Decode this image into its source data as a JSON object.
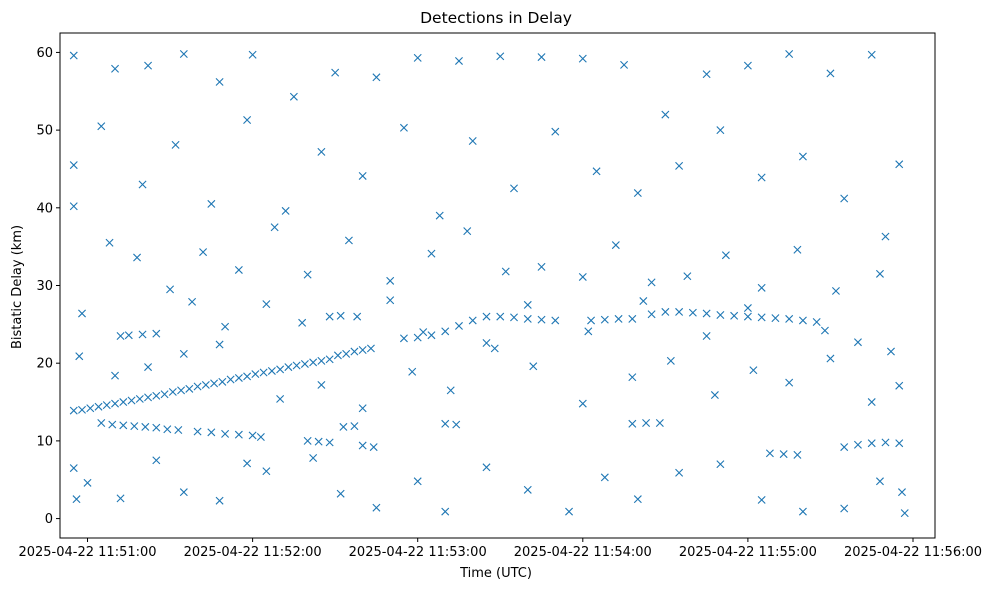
{
  "chart_data": {
    "type": "scatter",
    "title": "Detections in Delay",
    "xlabel": "Time (UTC)",
    "ylabel": "Bistatic Delay (km)",
    "xlim": [
      "2025-04-22 11:50:50",
      "2025-04-22 11:56:08"
    ],
    "ylim": [
      -2.5,
      62.5
    ],
    "xticks": [
      "2025-04-22 11:51:00",
      "2025-04-22 11:52:00",
      "2025-04-22 11:53:00",
      "2025-04-22 11:54:00",
      "2025-04-22 11:55:00",
      "2025-04-22 11:56:00"
    ],
    "yticks": [
      0,
      10,
      20,
      30,
      40,
      50,
      60
    ],
    "marker": "x",
    "color": "#1f77b4",
    "grid": false,
    "legend": "none",
    "series": [
      {
        "points": [
          [
            "2025-04-22 11:50:55",
            13.9
          ],
          [
            "2025-04-22 11:50:58",
            14.0
          ],
          [
            "2025-04-22 11:51:01",
            14.2
          ],
          [
            "2025-04-22 11:51:04",
            14.4
          ],
          [
            "2025-04-22 11:51:07",
            14.6
          ],
          [
            "2025-04-22 11:51:10",
            14.8
          ],
          [
            "2025-04-22 11:51:13",
            15.0
          ],
          [
            "2025-04-22 11:51:16",
            15.2
          ],
          [
            "2025-04-22 11:51:19",
            15.4
          ],
          [
            "2025-04-22 11:51:22",
            15.6
          ],
          [
            "2025-04-22 11:51:25",
            15.8
          ],
          [
            "2025-04-22 11:51:28",
            16.0
          ],
          [
            "2025-04-22 11:51:31",
            16.3
          ],
          [
            "2025-04-22 11:51:34",
            16.5
          ],
          [
            "2025-04-22 11:51:37",
            16.7
          ],
          [
            "2025-04-22 11:51:40",
            17.0
          ],
          [
            "2025-04-22 11:51:43",
            17.2
          ],
          [
            "2025-04-22 11:51:46",
            17.4
          ],
          [
            "2025-04-22 11:51:49",
            17.6
          ],
          [
            "2025-04-22 11:51:52",
            17.9
          ],
          [
            "2025-04-22 11:51:55",
            18.1
          ],
          [
            "2025-04-22 11:51:58",
            18.3
          ],
          [
            "2025-04-22 11:52:01",
            18.6
          ],
          [
            "2025-04-22 11:52:04",
            18.8
          ],
          [
            "2025-04-22 11:52:07",
            19.0
          ],
          [
            "2025-04-22 11:52:10",
            19.2
          ],
          [
            "2025-04-22 11:52:13",
            19.5
          ],
          [
            "2025-04-22 11:52:16",
            19.7
          ],
          [
            "2025-04-22 11:52:19",
            19.9
          ],
          [
            "2025-04-22 11:52:22",
            20.1
          ],
          [
            "2025-04-22 11:52:25",
            20.3
          ],
          [
            "2025-04-22 11:52:28",
            20.5
          ],
          [
            "2025-04-22 11:52:31",
            21.0
          ],
          [
            "2025-04-22 11:52:34",
            21.2
          ],
          [
            "2025-04-22 11:52:37",
            21.5
          ],
          [
            "2025-04-22 11:52:40",
            21.7
          ],
          [
            "2025-04-22 11:52:43",
            21.9
          ],
          [
            "2025-04-22 11:51:05",
            12.3
          ],
          [
            "2025-04-22 11:51:09",
            12.1
          ],
          [
            "2025-04-22 11:51:13",
            12.0
          ],
          [
            "2025-04-22 11:51:17",
            11.9
          ],
          [
            "2025-04-22 11:51:21",
            11.8
          ],
          [
            "2025-04-22 11:51:25",
            11.7
          ],
          [
            "2025-04-22 11:51:29",
            11.5
          ],
          [
            "2025-04-22 11:51:33",
            11.4
          ],
          [
            "2025-04-22 11:51:40",
            11.2
          ],
          [
            "2025-04-22 11:51:45",
            11.1
          ],
          [
            "2025-04-22 11:51:50",
            10.9
          ],
          [
            "2025-04-22 11:51:55",
            10.8
          ],
          [
            "2025-04-22 11:52:00",
            10.7
          ],
          [
            "2025-04-22 11:52:03",
            10.5
          ],
          [
            "2025-04-22 11:52:20",
            10.0
          ],
          [
            "2025-04-22 11:52:24",
            9.9
          ],
          [
            "2025-04-22 11:52:28",
            9.8
          ],
          [
            "2025-04-22 11:52:33",
            11.8
          ],
          [
            "2025-04-22 11:52:37",
            11.9
          ],
          [
            "2025-04-22 11:52:40",
            9.4
          ],
          [
            "2025-04-22 11:52:44",
            9.2
          ],
          [
            "2025-04-22 11:52:55",
            23.2
          ],
          [
            "2025-04-22 11:53:00",
            23.3
          ],
          [
            "2025-04-22 11:53:05",
            23.6
          ],
          [
            "2025-04-22 11:53:10",
            24.1
          ],
          [
            "2025-04-22 11:53:15",
            24.8
          ],
          [
            "2025-04-22 11:53:20",
            25.5
          ],
          [
            "2025-04-22 11:53:25",
            26.0
          ],
          [
            "2025-04-22 11:53:30",
            26.0
          ],
          [
            "2025-04-22 11:53:35",
            25.9
          ],
          [
            "2025-04-22 11:53:40",
            25.7
          ],
          [
            "2025-04-22 11:53:45",
            25.6
          ],
          [
            "2025-04-22 11:53:50",
            25.5
          ],
          [
            "2025-04-22 11:54:03",
            25.5
          ],
          [
            "2025-04-22 11:54:08",
            25.6
          ],
          [
            "2025-04-22 11:54:13",
            25.7
          ],
          [
            "2025-04-22 11:54:18",
            25.7
          ],
          [
            "2025-04-22 11:54:25",
            26.3
          ],
          [
            "2025-04-22 11:54:30",
            26.6
          ],
          [
            "2025-04-22 11:54:35",
            26.6
          ],
          [
            "2025-04-22 11:54:40",
            26.5
          ],
          [
            "2025-04-22 11:54:45",
            26.4
          ],
          [
            "2025-04-22 11:54:50",
            26.2
          ],
          [
            "2025-04-22 11:54:55",
            26.1
          ],
          [
            "2025-04-22 11:55:00",
            26.0
          ],
          [
            "2025-04-22 11:55:05",
            25.9
          ],
          [
            "2025-04-22 11:55:10",
            25.8
          ],
          [
            "2025-04-22 11:55:15",
            25.7
          ],
          [
            "2025-04-22 11:55:20",
            25.5
          ],
          [
            "2025-04-22 11:55:25",
            25.3
          ],
          [
            "2025-04-22 11:53:10",
            12.2
          ],
          [
            "2025-04-22 11:53:14",
            12.1
          ],
          [
            "2025-04-22 11:54:18",
            12.2
          ],
          [
            "2025-04-22 11:54:23",
            12.3
          ],
          [
            "2025-04-22 11:54:28",
            12.3
          ],
          [
            "2025-04-22 11:55:08",
            8.4
          ],
          [
            "2025-04-22 11:55:13",
            8.3
          ],
          [
            "2025-04-22 11:55:18",
            8.2
          ],
          [
            "2025-04-22 11:55:35",
            9.2
          ],
          [
            "2025-04-22 11:55:40",
            9.5
          ],
          [
            "2025-04-22 11:55:45",
            9.7
          ],
          [
            "2025-04-22 11:55:50",
            9.8
          ],
          [
            "2025-04-22 11:55:55",
            9.7
          ],
          [
            "2025-04-22 11:50:55",
            59.6
          ],
          [
            "2025-04-22 11:51:10",
            57.9
          ],
          [
            "2025-04-22 11:51:22",
            58.3
          ],
          [
            "2025-04-22 11:51:35",
            59.8
          ],
          [
            "2025-04-22 11:51:48",
            56.2
          ],
          [
            "2025-04-22 11:52:00",
            59.7
          ],
          [
            "2025-04-22 11:52:15",
            54.3
          ],
          [
            "2025-04-22 11:52:30",
            57.4
          ],
          [
            "2025-04-22 11:52:45",
            56.8
          ],
          [
            "2025-04-22 11:53:00",
            59.3
          ],
          [
            "2025-04-22 11:53:15",
            58.9
          ],
          [
            "2025-04-22 11:53:30",
            59.5
          ],
          [
            "2025-04-22 11:53:45",
            59.4
          ],
          [
            "2025-04-22 11:54:00",
            59.2
          ],
          [
            "2025-04-22 11:54:15",
            58.4
          ],
          [
            "2025-04-22 11:54:30",
            52.0
          ],
          [
            "2025-04-22 11:54:45",
            57.2
          ],
          [
            "2025-04-22 11:55:00",
            58.3
          ],
          [
            "2025-04-22 11:55:15",
            59.8
          ],
          [
            "2025-04-22 11:55:30",
            57.3
          ],
          [
            "2025-04-22 11:55:45",
            59.7
          ],
          [
            "2025-04-22 11:55:55",
            45.6
          ],
          [
            "2025-04-22 11:50:55",
            45.5
          ],
          [
            "2025-04-22 11:51:05",
            50.5
          ],
          [
            "2025-04-22 11:51:20",
            43.0
          ],
          [
            "2025-04-22 11:51:32",
            48.1
          ],
          [
            "2025-04-22 11:51:45",
            40.5
          ],
          [
            "2025-04-22 11:51:58",
            51.3
          ],
          [
            "2025-04-22 11:52:12",
            39.6
          ],
          [
            "2025-04-22 11:52:25",
            47.2
          ],
          [
            "2025-04-22 11:52:40",
            44.1
          ],
          [
            "2025-04-22 11:52:55",
            50.3
          ],
          [
            "2025-04-22 11:53:08",
            39.0
          ],
          [
            "2025-04-22 11:53:20",
            48.6
          ],
          [
            "2025-04-22 11:53:35",
            42.5
          ],
          [
            "2025-04-22 11:53:50",
            49.8
          ],
          [
            "2025-04-22 11:54:05",
            44.7
          ],
          [
            "2025-04-22 11:54:20",
            41.9
          ],
          [
            "2025-04-22 11:54:35",
            45.4
          ],
          [
            "2025-04-22 11:54:50",
            50.0
          ],
          [
            "2025-04-22 11:55:05",
            43.9
          ],
          [
            "2025-04-22 11:55:20",
            46.6
          ],
          [
            "2025-04-22 11:55:35",
            41.2
          ],
          [
            "2025-04-22 11:55:50",
            36.3
          ],
          [
            "2025-04-22 11:50:55",
            40.2
          ],
          [
            "2025-04-22 11:51:08",
            35.5
          ],
          [
            "2025-04-22 11:51:18",
            33.6
          ],
          [
            "2025-04-22 11:51:30",
            29.5
          ],
          [
            "2025-04-22 11:51:42",
            34.3
          ],
          [
            "2025-04-22 11:51:55",
            32.0
          ],
          [
            "2025-04-22 11:52:08",
            37.5
          ],
          [
            "2025-04-22 11:52:20",
            31.4
          ],
          [
            "2025-04-22 11:52:35",
            35.8
          ],
          [
            "2025-04-22 11:52:50",
            30.6
          ],
          [
            "2025-04-22 11:53:05",
            34.1
          ],
          [
            "2025-04-22 11:53:18",
            37.0
          ],
          [
            "2025-04-22 11:53:32",
            31.8
          ],
          [
            "2025-04-22 11:53:45",
            32.4
          ],
          [
            "2025-04-22 11:54:00",
            31.1
          ],
          [
            "2025-04-22 11:54:12",
            35.2
          ],
          [
            "2025-04-22 11:54:25",
            30.4
          ],
          [
            "2025-04-22 11:54:38",
            31.2
          ],
          [
            "2025-04-22 11:54:52",
            33.9
          ],
          [
            "2025-04-22 11:55:05",
            29.7
          ],
          [
            "2025-04-22 11:55:18",
            34.6
          ],
          [
            "2025-04-22 11:55:32",
            29.3
          ],
          [
            "2025-04-22 11:55:48",
            31.5
          ],
          [
            "2025-04-22 11:50:58",
            26.4
          ],
          [
            "2025-04-22 11:51:12",
            23.5
          ],
          [
            "2025-04-22 11:51:15",
            23.6
          ],
          [
            "2025-04-22 11:51:20",
            23.7
          ],
          [
            "2025-04-22 11:51:25",
            23.8
          ],
          [
            "2025-04-22 11:51:38",
            27.9
          ],
          [
            "2025-04-22 11:51:50",
            24.7
          ],
          [
            "2025-04-22 11:52:05",
            27.6
          ],
          [
            "2025-04-22 11:52:18",
            25.2
          ],
          [
            "2025-04-22 11:52:28",
            26.0
          ],
          [
            "2025-04-22 11:52:32",
            26.1
          ],
          [
            "2025-04-22 11:52:38",
            26.0
          ],
          [
            "2025-04-22 11:52:50",
            28.1
          ],
          [
            "2025-04-22 11:53:02",
            24.0
          ],
          [
            "2025-04-22 11:53:25",
            22.6
          ],
          [
            "2025-04-22 11:53:40",
            27.5
          ],
          [
            "2025-04-22 11:54:02",
            24.1
          ],
          [
            "2025-04-22 11:54:22",
            28.0
          ],
          [
            "2025-04-22 11:54:45",
            23.5
          ],
          [
            "2025-04-22 11:55:00",
            27.1
          ],
          [
            "2025-04-22 11:55:28",
            24.2
          ],
          [
            "2025-04-22 11:55:40",
            22.7
          ],
          [
            "2025-04-22 11:55:52",
            21.5
          ],
          [
            "2025-04-22 11:50:57",
            20.9
          ],
          [
            "2025-04-22 11:51:10",
            18.4
          ],
          [
            "2025-04-22 11:51:22",
            19.5
          ],
          [
            "2025-04-22 11:51:35",
            21.2
          ],
          [
            "2025-04-22 11:51:48",
            22.4
          ],
          [
            "2025-04-22 11:52:10",
            15.4
          ],
          [
            "2025-04-22 11:52:25",
            17.2
          ],
          [
            "2025-04-22 11:52:40",
            14.2
          ],
          [
            "2025-04-22 11:52:58",
            18.9
          ],
          [
            "2025-04-22 11:53:12",
            16.5
          ],
          [
            "2025-04-22 11:53:28",
            21.9
          ],
          [
            "2025-04-22 11:53:42",
            19.6
          ],
          [
            "2025-04-22 11:54:00",
            14.8
          ],
          [
            "2025-04-22 11:54:18",
            18.2
          ],
          [
            "2025-04-22 11:54:32",
            20.3
          ],
          [
            "2025-04-22 11:54:48",
            15.9
          ],
          [
            "2025-04-22 11:55:02",
            19.1
          ],
          [
            "2025-04-22 11:55:15",
            17.5
          ],
          [
            "2025-04-22 11:55:30",
            20.6
          ],
          [
            "2025-04-22 11:55:45",
            15.0
          ],
          [
            "2025-04-22 11:55:55",
            17.1
          ],
          [
            "2025-04-22 11:50:55",
            6.5
          ],
          [
            "2025-04-22 11:50:56",
            2.5
          ],
          [
            "2025-04-22 11:51:00",
            4.6
          ],
          [
            "2025-04-22 11:51:12",
            2.6
          ],
          [
            "2025-04-22 11:51:25",
            7.5
          ],
          [
            "2025-04-22 11:51:35",
            3.4
          ],
          [
            "2025-04-22 11:51:48",
            2.3
          ],
          [
            "2025-04-22 11:51:58",
            7.1
          ],
          [
            "2025-04-22 11:52:05",
            6.1
          ],
          [
            "2025-04-22 11:52:22",
            7.8
          ],
          [
            "2025-04-22 11:52:32",
            3.2
          ],
          [
            "2025-04-22 11:52:45",
            1.4
          ],
          [
            "2025-04-22 11:53:00",
            4.8
          ],
          [
            "2025-04-22 11:53:10",
            0.9
          ],
          [
            "2025-04-22 11:53:25",
            6.6
          ],
          [
            "2025-04-22 11:53:40",
            3.7
          ],
          [
            "2025-04-22 11:53:55",
            0.9
          ],
          [
            "2025-04-22 11:54:08",
            5.3
          ],
          [
            "2025-04-22 11:54:20",
            2.5
          ],
          [
            "2025-04-22 11:54:35",
            5.9
          ],
          [
            "2025-04-22 11:54:50",
            7.0
          ],
          [
            "2025-04-22 11:55:05",
            2.4
          ],
          [
            "2025-04-22 11:55:20",
            0.9
          ],
          [
            "2025-04-22 11:55:35",
            1.3
          ],
          [
            "2025-04-22 11:55:48",
            4.8
          ],
          [
            "2025-04-22 11:55:57",
            0.7
          ],
          [
            "2025-04-22 11:55:56",
            3.4
          ]
        ]
      }
    ]
  }
}
